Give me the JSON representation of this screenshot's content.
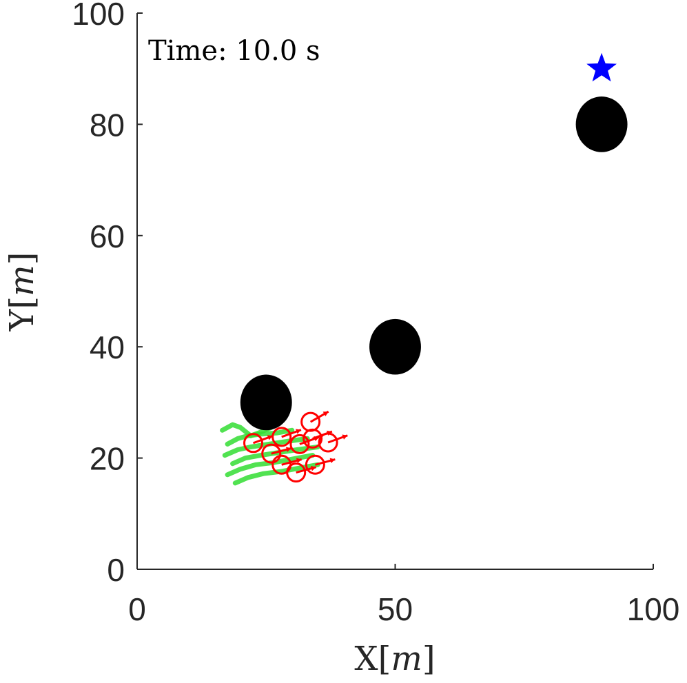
{
  "chart_data": {
    "type": "scatter",
    "annotation": "Time: 10.0 s",
    "xlabel": {
      "main": "X",
      "lbr": "[",
      "unit": "m",
      "rbr": "]"
    },
    "ylabel": {
      "main": "Y",
      "lbr": "[",
      "unit": "m",
      "rbr": "]"
    },
    "xlim": [
      0,
      100
    ],
    "ylim": [
      0,
      100
    ],
    "x_ticks": [
      0,
      50,
      100
    ],
    "y_ticks": [
      0,
      20,
      40,
      60,
      80,
      100
    ],
    "grid": false,
    "colors": {
      "obstacle": "#000000",
      "goal": "#0000ff",
      "agent": "#ff0000",
      "trail": "#33dd33",
      "axis": "#262626"
    },
    "obstacles": [
      {
        "x": 25,
        "y": 30,
        "r": 5
      },
      {
        "x": 50,
        "y": 40,
        "r": 5
      },
      {
        "x": 90,
        "y": 80,
        "r": 5
      }
    ],
    "goal": {
      "x": 90,
      "y": 90,
      "marker": "star"
    },
    "agents": [
      {
        "x": 33.6,
        "y": 26.5,
        "heading": 30
      },
      {
        "x": 22.5,
        "y": 22.7,
        "heading": 20
      },
      {
        "x": 28.0,
        "y": 23.8,
        "heading": 20
      },
      {
        "x": 31.5,
        "y": 22.5,
        "heading": 20
      },
      {
        "x": 34.0,
        "y": 23.5,
        "heading": 20
      },
      {
        "x": 37.0,
        "y": 22.8,
        "heading": 20
      },
      {
        "x": 26.0,
        "y": 20.8,
        "heading": 15
      },
      {
        "x": 28.0,
        "y": 18.8,
        "heading": 15
      },
      {
        "x": 30.8,
        "y": 17.4,
        "heading": 15
      },
      {
        "x": 34.5,
        "y": 18.8,
        "heading": 15
      }
    ],
    "trails": [
      [
        [
          16.5,
          25.0
        ],
        [
          18.5,
          26.0
        ],
        [
          20.0,
          25.5
        ],
        [
          22.0,
          24.0
        ],
        [
          23.5,
          24.5
        ],
        [
          26.0,
          25.5
        ]
      ],
      [
        [
          17.5,
          22.5
        ],
        [
          19.5,
          23.5
        ],
        [
          21.5,
          24.0
        ],
        [
          24.0,
          24.3
        ],
        [
          27.0,
          24.5
        ],
        [
          30.0,
          25.0
        ]
      ],
      [
        [
          17.0,
          20.5
        ],
        [
          19.5,
          21.5
        ],
        [
          22.0,
          22.0
        ],
        [
          25.5,
          22.5
        ],
        [
          29.0,
          23.0
        ],
        [
          33.0,
          23.5
        ]
      ],
      [
        [
          18.5,
          19.0
        ],
        [
          21.0,
          20.0
        ],
        [
          24.0,
          20.5
        ],
        [
          27.5,
          21.0
        ],
        [
          31.0,
          21.5
        ],
        [
          35.0,
          22.0
        ]
      ],
      [
        [
          17.5,
          17.0
        ],
        [
          20.0,
          18.0
        ],
        [
          23.0,
          18.8
        ],
        [
          26.5,
          19.2
        ],
        [
          30.0,
          19.8
        ],
        [
          34.0,
          20.5
        ]
      ],
      [
        [
          19.0,
          15.5
        ],
        [
          21.5,
          16.5
        ],
        [
          24.5,
          17.2
        ],
        [
          28.0,
          17.6
        ],
        [
          31.5,
          18.2
        ],
        [
          35.0,
          18.8
        ]
      ]
    ]
  }
}
